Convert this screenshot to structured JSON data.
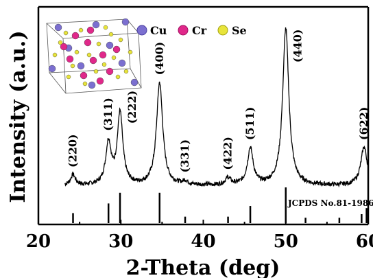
{
  "chart_data": {
    "type": "line",
    "xlabel": "2-Theta (deg)",
    "ylabel": "Intensity (a.u.)",
    "xlim": [
      20,
      60
    ],
    "xticks": [
      20,
      30,
      40,
      50,
      60
    ],
    "y_ticks_shown": false,
    "grid": false,
    "series": [
      {
        "values_description_units": "2-Theta (deg) vs relative intensity",
        "background": 0.1,
        "peaks": [
          {
            "x": 24.2,
            "height": 0.06,
            "width": 0.35
          },
          {
            "x": 28.5,
            "height": 0.24,
            "width": 0.4
          },
          {
            "x": 29.9,
            "height": 0.41,
            "width": 0.4
          },
          {
            "x": 34.7,
            "height": 0.59,
            "width": 0.45
          },
          {
            "x": 37.8,
            "height": 0.02,
            "width": 0.35
          },
          {
            "x": 43.0,
            "height": 0.04,
            "width": 0.4
          },
          {
            "x": 45.7,
            "height": 0.21,
            "width": 0.42
          },
          {
            "x": 50.0,
            "height": 0.9,
            "width": 0.45
          },
          {
            "x": 59.5,
            "height": 0.22,
            "width": 0.48
          }
        ]
      }
    ],
    "peak_labels": [
      {
        "text": "(220)",
        "x": 24.2
      },
      {
        "text": "(311)",
        "x": 28.5
      },
      {
        "text": "(222)",
        "x": 29.9
      },
      {
        "text": "(400)",
        "x": 34.7
      },
      {
        "text": "(331)",
        "x": 37.8
      },
      {
        "text": "(422)",
        "x": 43.0
      },
      {
        "text": "(511)",
        "x": 45.7
      },
      {
        "text": "(440)",
        "x": 50.0
      },
      {
        "text": "(622)",
        "x": 59.5
      }
    ],
    "reference": {
      "label": "JCPDS No.81-1986",
      "lines": [
        {
          "x": 24.2,
          "intensity": 0.28
        },
        {
          "x": 28.5,
          "intensity": 0.55
        },
        {
          "x": 29.9,
          "intensity": 0.85
        },
        {
          "x": 34.7,
          "intensity": 0.85
        },
        {
          "x": 37.8,
          "intensity": 0.18
        },
        {
          "x": 43.0,
          "intensity": 0.18
        },
        {
          "x": 45.7,
          "intensity": 0.48
        },
        {
          "x": 50.0,
          "intensity": 1.0
        },
        {
          "x": 52.4,
          "intensity": 0.15
        },
        {
          "x": 56.5,
          "intensity": 0.15
        },
        {
          "x": 59.2,
          "intensity": 0.25
        },
        {
          "x": 59.8,
          "intensity": 0.42
        }
      ]
    },
    "legend": {
      "placement": "top-left",
      "items": [
        {
          "label": "Cu",
          "color": "#7b6fd0"
        },
        {
          "label": "Cr",
          "color": "#e0288a"
        },
        {
          "label": "Se",
          "color": "#e8e43a"
        }
      ]
    }
  }
}
